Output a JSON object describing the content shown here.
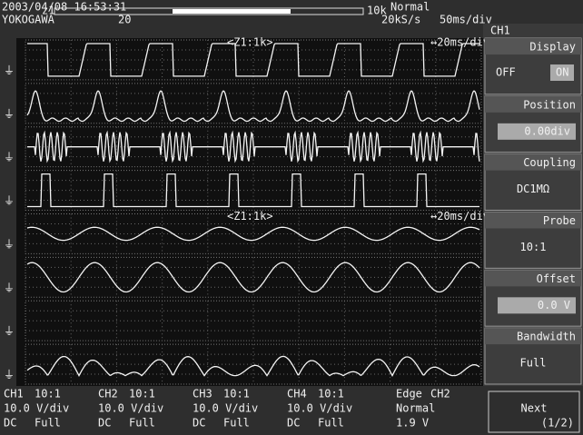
{
  "header": {
    "datetime": "2003/04/08 16:53:31",
    "zoom_marker": "z1",
    "record_length": "10k",
    "trigger_mode": "Normal",
    "brand": "YOKOGAWA",
    "zoom_value": "20",
    "sample_rate": "20kS/s",
    "time_div": "50ms/div"
  },
  "zoom_windows": [
    {
      "label": "<Z1:1k>",
      "time_div": "↔20ms/div"
    },
    {
      "label": "<Z1:1k>",
      "time_div": "↔20ms/div"
    }
  ],
  "menu": {
    "title": "CH1",
    "display": {
      "label": "Display",
      "off": "OFF",
      "on": "ON"
    },
    "position": {
      "label": "Position",
      "value": "0.00div"
    },
    "coupling": {
      "label": "Coupling",
      "value": "DC1MΩ"
    },
    "probe": {
      "label": "Probe",
      "value": "10:1"
    },
    "offset": {
      "label": "Offset",
      "value": "0.0 V"
    },
    "bandwidth": {
      "label": "Bandwidth",
      "value": "Full"
    },
    "next": {
      "label": "Next",
      "page": "(1/2)"
    }
  },
  "channels": [
    {
      "name": "CH1",
      "probe": "10:1",
      "volts_div": "10.0 V/div",
      "coupling": "DC",
      "bandwidth": "Full",
      "active": true
    },
    {
      "name": "CH2",
      "probe": "10:1",
      "volts_div": "10.0 V/div",
      "coupling": "DC",
      "bandwidth": "Full",
      "active": false
    },
    {
      "name": "CH3",
      "probe": "10:1",
      "volts_div": "10.0 V/div",
      "coupling": "DC",
      "bandwidth": "Full",
      "active": false
    },
    {
      "name": "CH4",
      "probe": "10:1",
      "volts_div": "10.0 V/div",
      "coupling": "DC",
      "bandwidth": "Full",
      "active": true
    }
  ],
  "trigger": {
    "type": "Edge",
    "source": "CH2",
    "mode": "Normal",
    "level": "1.9 V"
  }
}
